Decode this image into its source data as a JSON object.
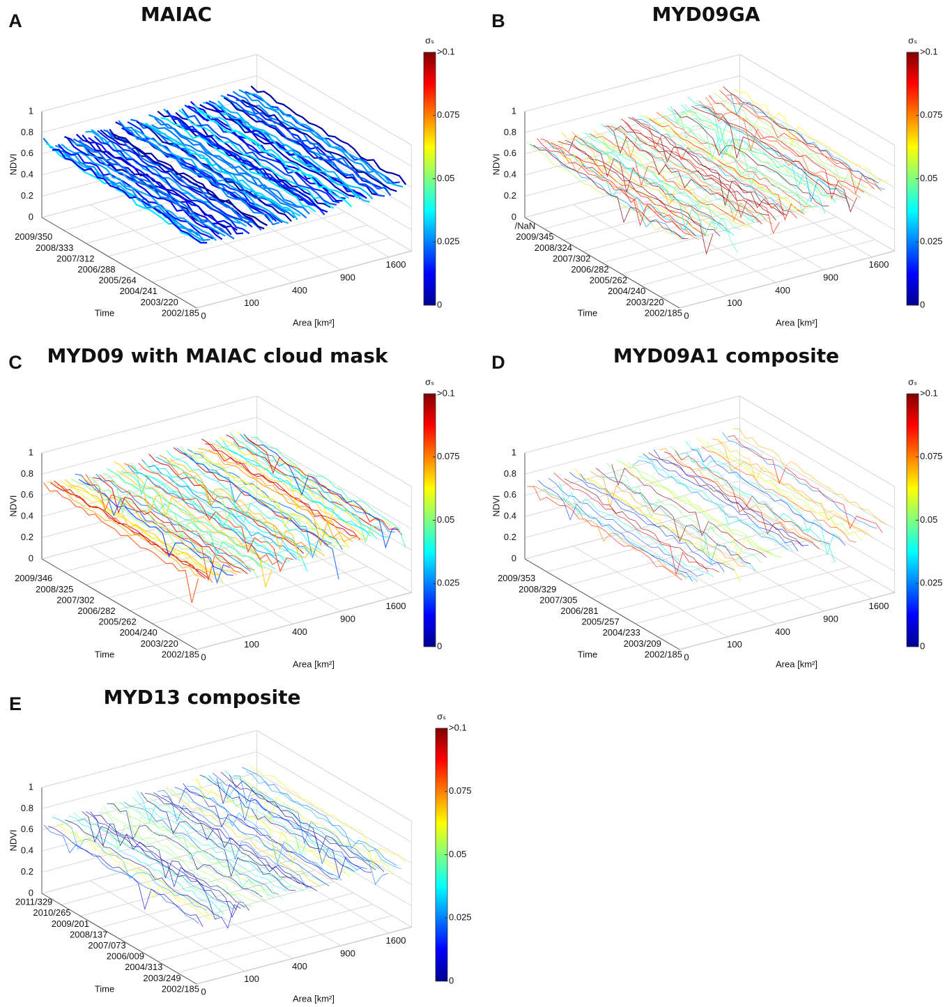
{
  "chart_data": [
    {
      "type": "surface",
      "panel": "A",
      "title": "MAIAC",
      "z_label": "NDVI",
      "y_label": "Time",
      "x_label": "Area [km²]",
      "colorbar_label": "σₛ",
      "zlim": [
        0,
        1
      ],
      "zticks": [
        0,
        0.2,
        0.4,
        0.6,
        0.8,
        1
      ],
      "xscale": "sqrt",
      "xlim": [
        0,
        2000
      ],
      "xticks": [
        0,
        100,
        400,
        900,
        1600
      ],
      "time_ticks": [
        "2009/350",
        "2008/333",
        "2007/312",
        "2006/288",
        "2005/264",
        "2004/241",
        "2003/220",
        "2002/185"
      ],
      "clim": [
        0,
        0.1
      ],
      "colorbar_ticks": [
        0,
        0.025,
        0.05,
        0.075,
        {
          "value": 0.1,
          "label": ">0.1"
        }
      ],
      "grid": true
    },
    {
      "type": "surface",
      "panel": "B",
      "title": "MYD09GA",
      "z_label": "NDVI",
      "y_label": "Time",
      "x_label": "Area [km²]",
      "colorbar_label": "σₛ",
      "zlim": [
        0,
        1
      ],
      "zticks": [
        0,
        0.2,
        0.4,
        0.6,
        0.8,
        1
      ],
      "xscale": "sqrt",
      "xlim": [
        0,
        2000
      ],
      "xticks": [
        0,
        100,
        400,
        900,
        1600
      ],
      "time_ticks": [
        "/NaN",
        "2009/345",
        "2008/324",
        "2007/302",
        "2006/282",
        "2005/262",
        "2004/240",
        "2003/220",
        "2002/185"
      ],
      "clim": [
        0,
        0.1
      ],
      "colorbar_ticks": [
        0,
        0.025,
        0.05,
        0.075,
        {
          "value": 0.1,
          "label": ">0.1"
        }
      ],
      "grid": true
    },
    {
      "type": "surface",
      "panel": "C",
      "title": "MYD09 with MAIAC cloud mask",
      "z_label": "NDVI",
      "y_label": "Time",
      "x_label": "Area [km²]",
      "colorbar_label": "σₛ",
      "zlim": [
        0,
        1
      ],
      "zticks": [
        0,
        0.2,
        0.4,
        0.6,
        0.8,
        1
      ],
      "xscale": "sqrt",
      "xlim": [
        0,
        2000
      ],
      "xticks": [
        0,
        100,
        400,
        900,
        1600
      ],
      "time_ticks": [
        "2009/346",
        "2008/325",
        "2007/302",
        "2006/282",
        "2005/262",
        "2004/240",
        "2003/220",
        "2002/185"
      ],
      "clim": [
        0,
        0.1
      ],
      "colorbar_ticks": [
        0,
        0.025,
        0.05,
        0.075,
        {
          "value": 0.1,
          "label": ">0.1"
        }
      ],
      "grid": true
    },
    {
      "type": "surface",
      "panel": "D",
      "title": "MYD09A1 composite",
      "z_label": "NDVI",
      "y_label": "Time",
      "x_label": "Area [km²]",
      "colorbar_label": "σₛ",
      "zlim": [
        0,
        1
      ],
      "zticks": [
        0,
        0.2,
        0.4,
        0.6,
        0.8,
        1
      ],
      "xscale": "sqrt",
      "xlim": [
        0,
        2000
      ],
      "xticks": [
        0,
        100,
        400,
        900,
        1600
      ],
      "time_ticks": [
        "2009/353",
        "2008/329",
        "2007/305",
        "2006/281",
        "2005/257",
        "2004/233",
        "2003/209",
        "2002/185"
      ],
      "clim": [
        0,
        0.1
      ],
      "colorbar_ticks": [
        0,
        0.025,
        0.05,
        0.075,
        {
          "value": 0.1,
          "label": ">0.1"
        }
      ],
      "grid": true
    },
    {
      "type": "surface",
      "panel": "E",
      "title": "MYD13 composite",
      "z_label": "NDVI",
      "y_label": "Time",
      "x_label": "Area [km²]",
      "colorbar_label": "σₛ",
      "zlim": [
        0,
        1
      ],
      "zticks": [
        0,
        0.2,
        0.4,
        0.6,
        0.8,
        1
      ],
      "xscale": "sqrt",
      "xlim": [
        0,
        2000
      ],
      "xticks": [
        0,
        100,
        400,
        900,
        1600
      ],
      "time_ticks": [
        "2011/329",
        "2010/265",
        "2009/201",
        "2008/137",
        "2007/073",
        "2006/009",
        "2004/313",
        "2003/249",
        "2002/185"
      ],
      "clim": [
        0,
        0.1
      ],
      "colorbar_ticks": [
        0,
        0.025,
        0.05,
        0.075,
        {
          "value": 0.1,
          "label": ">0.1"
        }
      ],
      "grid": true
    }
  ]
}
